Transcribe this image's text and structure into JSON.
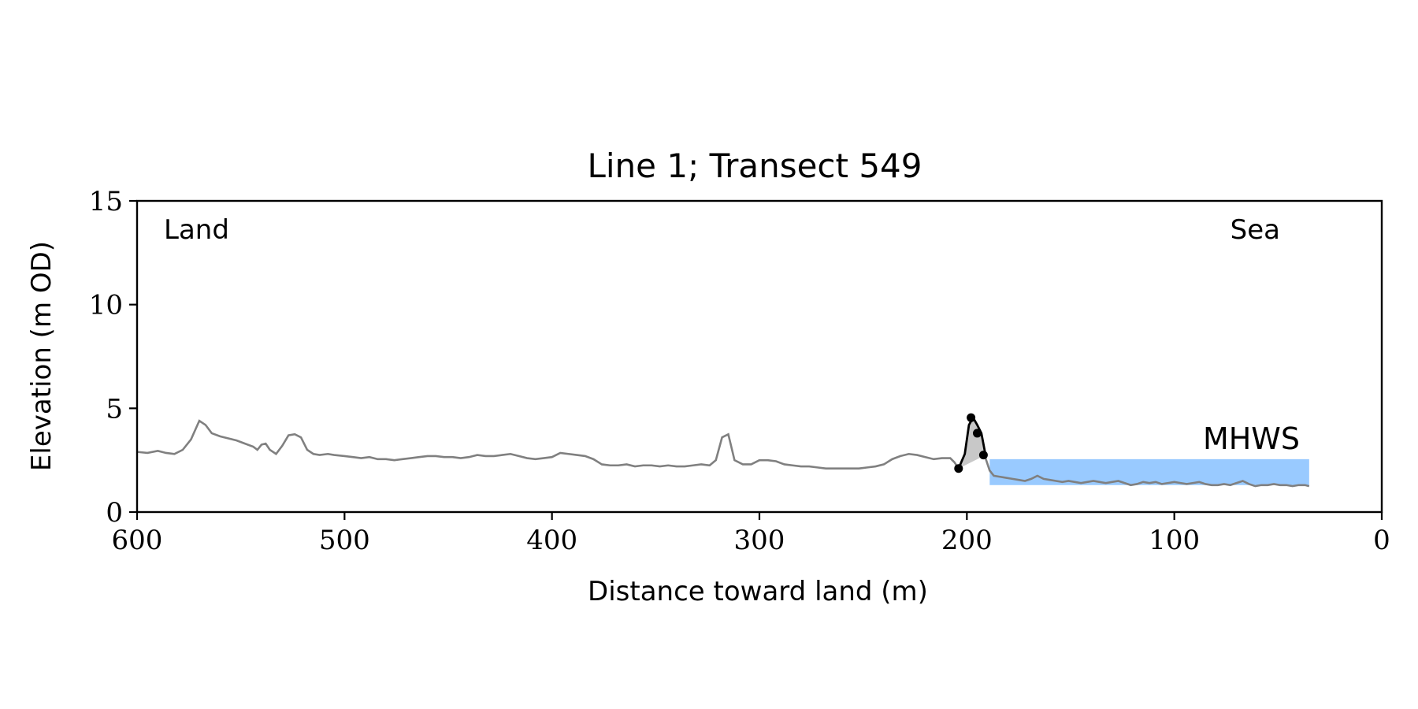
{
  "chart_data": {
    "type": "line",
    "title": "Line 1; Transect 549",
    "xlabel": "Distance toward land (m)",
    "ylabel": "Elevation (m OD)",
    "xlim": [
      600,
      0
    ],
    "ylim": [
      0,
      15
    ],
    "x_ticks": [
      "600",
      "500",
      "400",
      "300",
      "200",
      "100",
      "0"
    ],
    "y_ticks": [
      "0",
      "5",
      "10",
      "15"
    ],
    "annotations": {
      "land": "Land",
      "sea": "Sea",
      "mhws": "MHWS"
    },
    "colors": {
      "profile": "#808080",
      "dune": "#000000",
      "dune_fill": "#c8c8c8",
      "mhws_band": "#99caff",
      "mhws_text": "#6699cc"
    },
    "mhws": {
      "x_start": 189,
      "x_end": 35,
      "level": 2.55
    },
    "dune": {
      "x": [
        204,
        201,
        199,
        197,
        195,
        193,
        191
      ],
      "y": [
        2.1,
        2.8,
        4.2,
        4.55,
        4.2,
        3.8,
        2.75
      ],
      "markers": [
        [
          204,
          2.1
        ],
        [
          198,
          4.55
        ],
        [
          195,
          3.8
        ],
        [
          192,
          2.75
        ]
      ]
    },
    "series": [
      {
        "x": [
          600,
          595,
          590,
          586,
          582,
          578,
          574,
          570,
          567,
          564,
          560,
          556,
          552,
          548,
          544,
          542,
          540,
          538,
          536,
          533,
          530,
          527,
          524,
          521,
          518,
          515,
          512,
          508,
          505,
          500,
          496,
          492,
          488,
          484,
          480,
          476,
          472,
          468,
          464,
          460,
          456,
          452,
          448,
          444,
          440,
          436,
          432,
          428,
          424,
          420,
          416,
          412,
          408,
          404,
          400,
          396,
          392,
          388,
          384,
          380,
          376,
          372,
          368,
          364,
          360,
          356,
          352,
          348,
          344,
          340,
          336,
          332,
          328,
          324,
          321,
          318,
          315,
          312,
          308,
          304,
          300,
          296,
          292,
          288,
          284,
          280,
          276,
          272,
          268,
          264,
          260,
          256,
          252,
          248,
          244,
          240,
          236,
          232,
          228,
          224,
          220,
          216,
          212,
          208,
          206,
          204
        ],
        "y": [
          2.9,
          2.85,
          2.95,
          2.85,
          2.8,
          3.0,
          3.5,
          4.4,
          4.2,
          3.8,
          3.65,
          3.55,
          3.45,
          3.3,
          3.15,
          3.0,
          3.25,
          3.3,
          3.0,
          2.8,
          3.2,
          3.7,
          3.75,
          3.6,
          3.0,
          2.8,
          2.75,
          2.8,
          2.75,
          2.7,
          2.65,
          2.6,
          2.65,
          2.55,
          2.55,
          2.5,
          2.55,
          2.6,
          2.65,
          2.7,
          2.7,
          2.65,
          2.65,
          2.6,
          2.65,
          2.75,
          2.7,
          2.7,
          2.75,
          2.8,
          2.7,
          2.6,
          2.55,
          2.6,
          2.65,
          2.85,
          2.8,
          2.75,
          2.7,
          2.55,
          2.3,
          2.25,
          2.25,
          2.3,
          2.2,
          2.25,
          2.25,
          2.2,
          2.25,
          2.2,
          2.2,
          2.25,
          2.3,
          2.25,
          2.5,
          3.6,
          3.75,
          2.5,
          2.3,
          2.3,
          2.5,
          2.5,
          2.45,
          2.3,
          2.25,
          2.2,
          2.2,
          2.15,
          2.1,
          2.1,
          2.1,
          2.1,
          2.1,
          2.15,
          2.2,
          2.3,
          2.55,
          2.7,
          2.8,
          2.75,
          2.65,
          2.55,
          2.6,
          2.6,
          2.4,
          2.1
        ]
      },
      {
        "x": [
          191,
          189,
          187,
          184,
          181,
          178,
          175,
          172,
          169,
          166,
          163,
          160,
          157,
          154,
          151,
          148,
          145,
          142,
          139,
          136,
          133,
          130,
          127,
          124,
          121,
          118,
          115,
          112,
          109,
          106,
          103,
          100,
          97,
          94,
          91,
          88,
          85,
          82,
          79,
          76,
          73,
          70,
          67,
          64,
          61,
          58,
          55,
          52,
          49,
          46,
          43,
          40,
          37,
          35
        ],
        "y": [
          2.6,
          2.0,
          1.75,
          1.7,
          1.65,
          1.6,
          1.55,
          1.5,
          1.6,
          1.75,
          1.6,
          1.55,
          1.5,
          1.45,
          1.5,
          1.45,
          1.4,
          1.45,
          1.5,
          1.45,
          1.4,
          1.45,
          1.5,
          1.4,
          1.3,
          1.35,
          1.45,
          1.4,
          1.45,
          1.35,
          1.4,
          1.45,
          1.4,
          1.35,
          1.4,
          1.45,
          1.35,
          1.3,
          1.3,
          1.35,
          1.3,
          1.4,
          1.5,
          1.35,
          1.25,
          1.3,
          1.3,
          1.35,
          1.3,
          1.3,
          1.25,
          1.3,
          1.3,
          1.25
        ]
      }
    ]
  }
}
